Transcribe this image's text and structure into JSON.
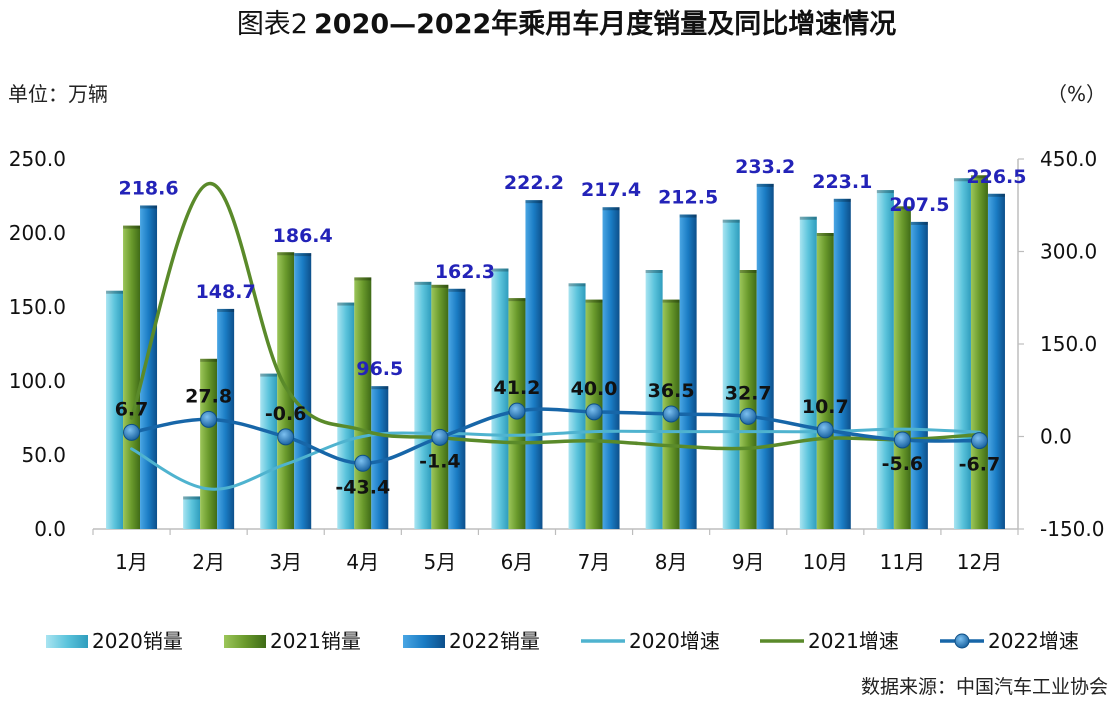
{
  "chart_data": {
    "type": "bar",
    "title_prefix": "图表2",
    "title_main": "2020—2022年乘用车月度销量及同比增速情况",
    "unit_left": "单位：万辆",
    "unit_right": "（%）",
    "source": "数据来源：中国汽车工业协会",
    "categories": [
      "1月",
      "2月",
      "3月",
      "4月",
      "5月",
      "6月",
      "7月",
      "8月",
      "9月",
      "10月",
      "11月",
      "12月"
    ],
    "y_left": {
      "min": 0,
      "max": 250,
      "ticks": [
        "0.0",
        "50.0",
        "100.0",
        "150.0",
        "200.0",
        "250.0"
      ]
    },
    "y_right": {
      "min": -150,
      "max": 450,
      "ticks": [
        "-150.0",
        "0.0",
        "150.0",
        "300.0",
        "450.0"
      ]
    },
    "bar_series": [
      {
        "name": "2020销量",
        "color": "#5cc4dc",
        "values": [
          161,
          22,
          105,
          153,
          167,
          176,
          166,
          175,
          209,
          211,
          229,
          237
        ]
      },
      {
        "name": "2021销量",
        "color": "#6a9a2c",
        "values": [
          205,
          115,
          187,
          170,
          165,
          156,
          155,
          155,
          175,
          200,
          218,
          239
        ]
      },
      {
        "name": "2022销量",
        "color": "#1a7cc4",
        "values": [
          218.6,
          148.7,
          186.4,
          96.5,
          162.3,
          222.2,
          217.4,
          212.5,
          233.2,
          223.1,
          207.5,
          226.5
        ],
        "labels": [
          "218.6",
          "148.7",
          "186.4",
          "96.5",
          "162.3",
          "222.2",
          "217.4",
          "212.5",
          "233.2",
          "223.1",
          "207.5",
          "226.5"
        ]
      }
    ],
    "line_series": [
      {
        "name": "2020增速",
        "color": "#4fb3cf",
        "values": [
          -20,
          -85,
          -45,
          0,
          5,
          2,
          8,
          8,
          8,
          8,
          12,
          7
        ]
      },
      {
        "name": "2021增速",
        "color": "#5a8a2a",
        "values": [
          30,
          410,
          80,
          10,
          -2,
          -10,
          -7,
          -15,
          -19,
          -3,
          -5,
          3
        ]
      },
      {
        "name": "2022增速",
        "color": "#1766a8",
        "values": [
          6.7,
          27.8,
          -0.6,
          -43.4,
          -1.4,
          41.2,
          40.0,
          36.5,
          32.7,
          10.7,
          -5.6,
          -6.7
        ],
        "labels": [
          "6.7",
          "27.8",
          "-0.6",
          "-43.4",
          "-1.4",
          "41.2",
          "40.0",
          "36.5",
          "32.7",
          "10.7",
          "-5.6",
          "-6.7"
        ]
      }
    ],
    "legend_position": "bottom",
    "grid": false
  }
}
